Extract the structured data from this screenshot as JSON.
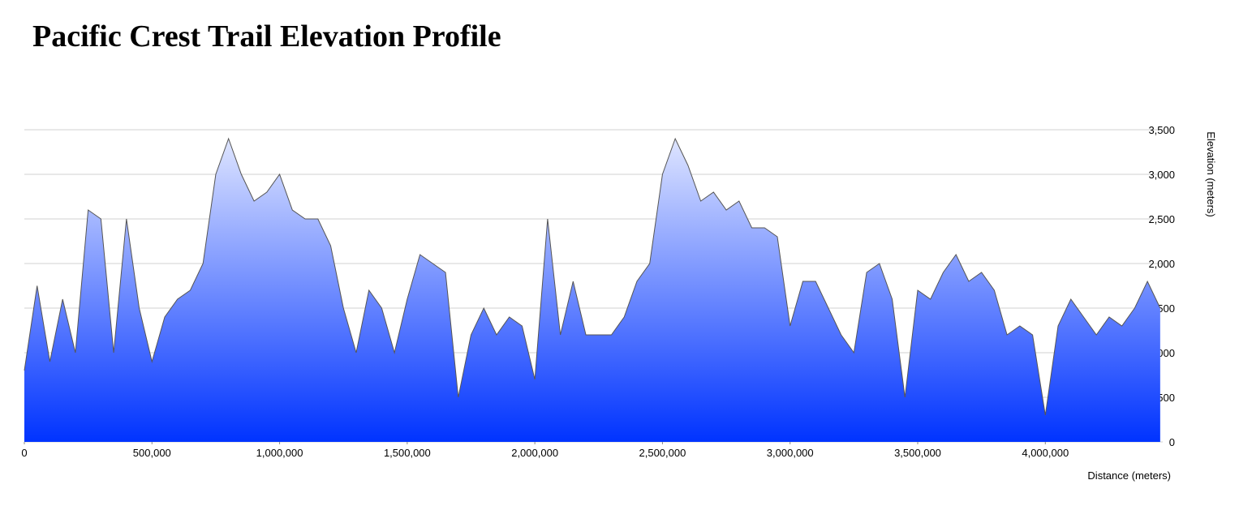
{
  "chart_data": {
    "type": "area",
    "title": "Pacific Crest Trail Elevation Profile",
    "x_label": "Distance (meters)",
    "y_label": "Elevation (meters)",
    "x": [
      0,
      50000,
      100000,
      150000,
      200000,
      250000,
      300000,
      350000,
      400000,
      450000,
      500000,
      550000,
      600000,
      650000,
      700000,
      750000,
      800000,
      850000,
      900000,
      950000,
      1000000,
      1050000,
      1100000,
      1150000,
      1200000,
      1250000,
      1300000,
      1350000,
      1400000,
      1450000,
      1500000,
      1550000,
      1600000,
      1650000,
      1700000,
      1750000,
      1800000,
      1850000,
      1900000,
      1950000,
      2000000,
      2050000,
      2100000,
      2150000,
      2200000,
      2250000,
      2300000,
      2350000,
      2400000,
      2450000,
      2500000,
      2550000,
      2600000,
      2650000,
      2700000,
      2750000,
      2800000,
      2850000,
      2900000,
      2950000,
      3000000,
      3050000,
      3100000,
      3150000,
      3200000,
      3250000,
      3300000,
      3350000,
      3400000,
      3450000,
      3500000,
      3550000,
      3600000,
      3650000,
      3700000,
      3750000,
      3800000,
      3850000,
      3900000,
      3950000,
      4000000,
      4050000,
      4100000,
      4150000,
      4200000,
      4250000,
      4300000,
      4350000,
      4400000,
      4450000
    ],
    "values": [
      800,
      1750,
      900,
      1600,
      1000,
      2600,
      2500,
      1000,
      2500,
      1500,
      900,
      1400,
      1600,
      1700,
      2000,
      3000,
      3400,
      3000,
      2700,
      2800,
      3000,
      2600,
      2500,
      2500,
      2200,
      1500,
      1000,
      1700,
      1500,
      1000,
      1600,
      2100,
      2000,
      1900,
      500,
      1200,
      1500,
      1200,
      1400,
      1300,
      700,
      2500,
      1200,
      1800,
      1200,
      1200,
      1200,
      1400,
      1800,
      2000,
      3000,
      3400,
      3100,
      2700,
      2800,
      2600,
      2700,
      2400,
      2400,
      2300,
      1300,
      1800,
      1800,
      1500,
      1200,
      1000,
      1900,
      2000,
      1600,
      500,
      1700,
      1600,
      1900,
      2100,
      1800,
      1900,
      1700,
      1200,
      1300,
      1200,
      300,
      1300,
      1600,
      1400,
      1200,
      1400,
      1300,
      1500,
      1800,
      1500
    ],
    "color": "#0033ff",
    "line_color": "#555555",
    "grid": true,
    "xlim": [
      0,
      4460000
    ],
    "ylim": [
      0,
      3900
    ],
    "xticks": [
      0,
      {
        "value": 500000,
        "label": "500,000"
      },
      {
        "value": 1000000,
        "label": "1,000,000"
      },
      {
        "value": 1500000,
        "label": "1,500,000"
      },
      {
        "value": 2000000,
        "label": "2,000,000"
      },
      {
        "value": 2500000,
        "label": "2,500,000"
      },
      {
        "value": 3000000,
        "label": "3,000,000"
      },
      {
        "value": 3500000,
        "label": "3,500,000"
      },
      {
        "value": 4000000,
        "label": "4,000,000"
      }
    ],
    "yticks": [
      0,
      500,
      {
        "value": 1000,
        "label": "1,000"
      },
      {
        "value": 1500,
        "label": "1,500"
      },
      {
        "value": 2000,
        "label": "2,000"
      },
      {
        "value": 2500,
        "label": "2,500"
      },
      {
        "value": 3000,
        "label": "3,000"
      },
      {
        "value": 3500,
        "label": "3,500"
      }
    ]
  }
}
